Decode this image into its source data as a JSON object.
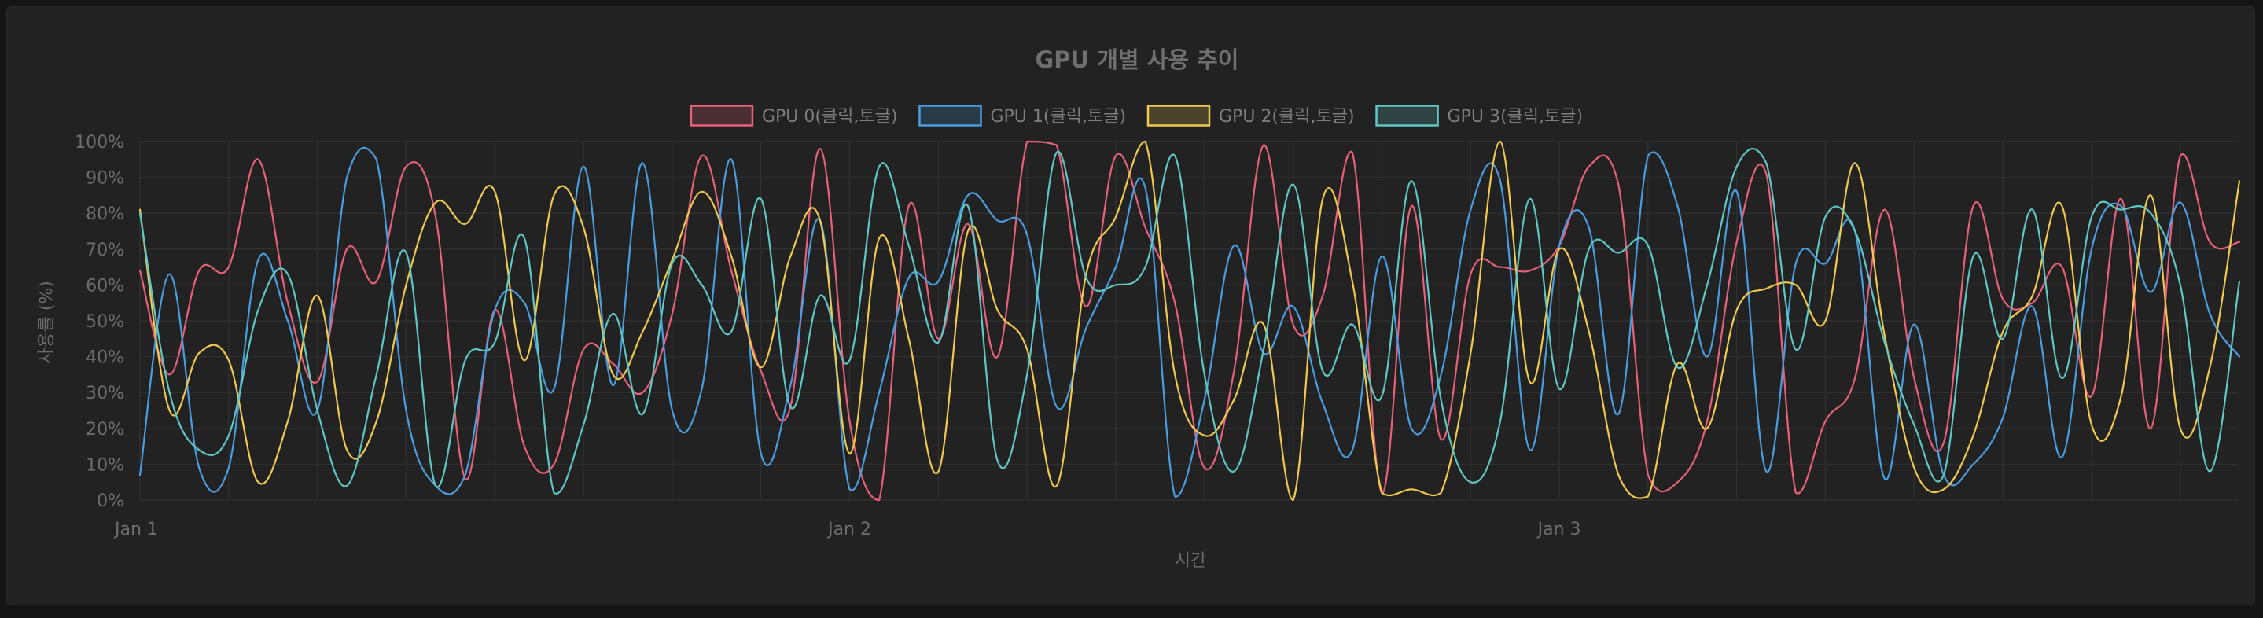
{
  "chart_data": {
    "type": "line",
    "title": "GPU 개별 사용 추이",
    "xlabel": "시간",
    "ylabel": "사용률 (%)",
    "ylim": [
      0,
      100
    ],
    "yticks": [
      "0%",
      "10%",
      "20%",
      "30%",
      "40%",
      "50%",
      "60%",
      "70%",
      "80%",
      "90%",
      "100%"
    ],
    "xtick_labels": [
      "Jan 1",
      "Jan 2",
      "Jan 3"
    ],
    "xlim_hours": [
      0,
      71
    ],
    "grid": true,
    "legend_position": "top",
    "series": [
      {
        "name": "GPU 0(클릭,토글)",
        "color": "#e8607a",
        "x": [
          0,
          1,
          2,
          3,
          4,
          5,
          6,
          7,
          8,
          9,
          10,
          11,
          12,
          13,
          14,
          15,
          16,
          17,
          18,
          19,
          20,
          21,
          22,
          23,
          24,
          25,
          26,
          27,
          28,
          29,
          30,
          31,
          32,
          33,
          34,
          35,
          36,
          37,
          38,
          39,
          40,
          41,
          42,
          43,
          44,
          45,
          46,
          47,
          48,
          49,
          50,
          51,
          52,
          53,
          54,
          55,
          56,
          57,
          58,
          59,
          60,
          61,
          62,
          63,
          64,
          65,
          66,
          67,
          68,
          69,
          70,
          71
        ],
        "values": [
          64,
          35,
          64,
          65,
          95,
          55,
          33,
          70,
          61,
          93,
          79,
          6,
          53,
          15,
          10,
          42,
          38,
          30,
          52,
          96,
          64,
          36,
          26,
          98,
          22,
          0,
          82,
          45,
          77,
          40,
          100,
          99,
          54,
          96,
          76,
          55,
          9,
          36,
          99,
          49,
          57,
          97,
          2,
          82,
          17,
          63,
          65,
          64,
          71,
          93,
          88,
          7,
          5,
          22,
          72,
          91,
          2,
          22,
          34,
          81,
          34,
          16,
          82,
          56,
          55,
          65,
          29,
          84,
          20,
          96,
          72,
          72
        ]
      },
      {
        "name": "GPU 1(클릭,토글)",
        "color": "#4a9ee0",
        "x": [
          0,
          1,
          2,
          3,
          4,
          5,
          6,
          7,
          8,
          9,
          10,
          11,
          12,
          13,
          14,
          15,
          16,
          17,
          18,
          19,
          20,
          21,
          22,
          23,
          24,
          25,
          26,
          27,
          28,
          29,
          30,
          31,
          32,
          33,
          34,
          35,
          36,
          37,
          38,
          39,
          40,
          41,
          42,
          43,
          44,
          45,
          46,
          47,
          48,
          49,
          50,
          51,
          52,
          53,
          54,
          55,
          56,
          57,
          58,
          59,
          60,
          61,
          62,
          63,
          64,
          65,
          66,
          67,
          68,
          69,
          70,
          71
        ],
        "values": [
          7,
          63,
          9,
          9,
          67,
          50,
          25,
          90,
          95,
          25,
          4,
          7,
          53,
          55,
          31,
          93,
          32,
          94,
          25,
          31,
          95,
          13,
          32,
          78,
          3,
          30,
          62,
          61,
          85,
          78,
          74,
          26,
          48,
          65,
          87,
          1,
          28,
          71,
          41,
          54,
          27,
          14,
          68,
          20,
          35,
          81,
          89,
          14,
          71,
          76,
          24,
          96,
          82,
          40,
          86,
          8,
          66,
          66,
          75,
          6,
          49,
          7,
          10,
          23,
          54,
          12,
          70,
          82,
          58,
          83,
          52,
          40
        ]
      },
      {
        "name": "GPU 2(클릭,토글)",
        "color": "#f0c94e",
        "x": [
          0,
          1,
          2,
          3,
          4,
          5,
          6,
          7,
          8,
          9,
          10,
          11,
          12,
          13,
          14,
          15,
          16,
          17,
          18,
          19,
          20,
          21,
          22,
          23,
          24,
          25,
          26,
          27,
          28,
          29,
          30,
          31,
          32,
          33,
          34,
          35,
          36,
          37,
          38,
          39,
          40,
          41,
          42,
          43,
          44,
          45,
          46,
          47,
          48,
          49,
          50,
          51,
          52,
          53,
          54,
          55,
          56,
          57,
          58,
          59,
          60,
          61,
          62,
          63,
          64,
          65,
          66,
          67,
          68,
          69,
          70,
          71
        ],
        "values": [
          81,
          25,
          41,
          39,
          5,
          22,
          57,
          14,
          22,
          60,
          83,
          77,
          86,
          39,
          85,
          76,
          35,
          47,
          67,
          86,
          68,
          37,
          68,
          78,
          13,
          73,
          45,
          8,
          75,
          53,
          42,
          4,
          63,
          79,
          100,
          35,
          18,
          28,
          49,
          0,
          84,
          61,
          2,
          3,
          2,
          41,
          100,
          33,
          70,
          47,
          7,
          1,
          38,
          20,
          53,
          59,
          60,
          50,
          94,
          46,
          9,
          3,
          18,
          47,
          57,
          82,
          21,
          29,
          85,
          20,
          37,
          89
        ]
      },
      {
        "name": "GPU 3(클릭,토글)",
        "color": "#5fc7c4",
        "x": [
          0,
          1,
          2,
          3,
          4,
          5,
          6,
          7,
          8,
          9,
          10,
          11,
          12,
          13,
          14,
          15,
          16,
          17,
          18,
          19,
          20,
          21,
          22,
          23,
          24,
          25,
          26,
          27,
          28,
          29,
          30,
          31,
          32,
          33,
          34,
          35,
          36,
          37,
          38,
          39,
          40,
          41,
          42,
          43,
          44,
          45,
          46,
          47,
          48,
          49,
          50,
          51,
          52,
          53,
          54,
          55,
          56,
          57,
          58,
          59,
          60,
          61,
          62,
          63,
          64,
          65,
          66,
          67,
          68,
          69,
          70,
          71
        ],
        "values": [
          80,
          30,
          14,
          18,
          53,
          63,
          25,
          4,
          35,
          69,
          4,
          39,
          44,
          73,
          2,
          21,
          52,
          24,
          66,
          60,
          47,
          84,
          26,
          57,
          39,
          93,
          71,
          44,
          82,
          11,
          35,
          97,
          62,
          60,
          65,
          96,
          35,
          8,
          42,
          88,
          36,
          49,
          29,
          89,
          28,
          5,
          22,
          84,
          31,
          70,
          69,
          71,
          37,
          60,
          93,
          94,
          42,
          79,
          75,
          44,
          21,
          7,
          68,
          45,
          81,
          34,
          79,
          81,
          80,
          60,
          8,
          61
        ]
      }
    ]
  }
}
